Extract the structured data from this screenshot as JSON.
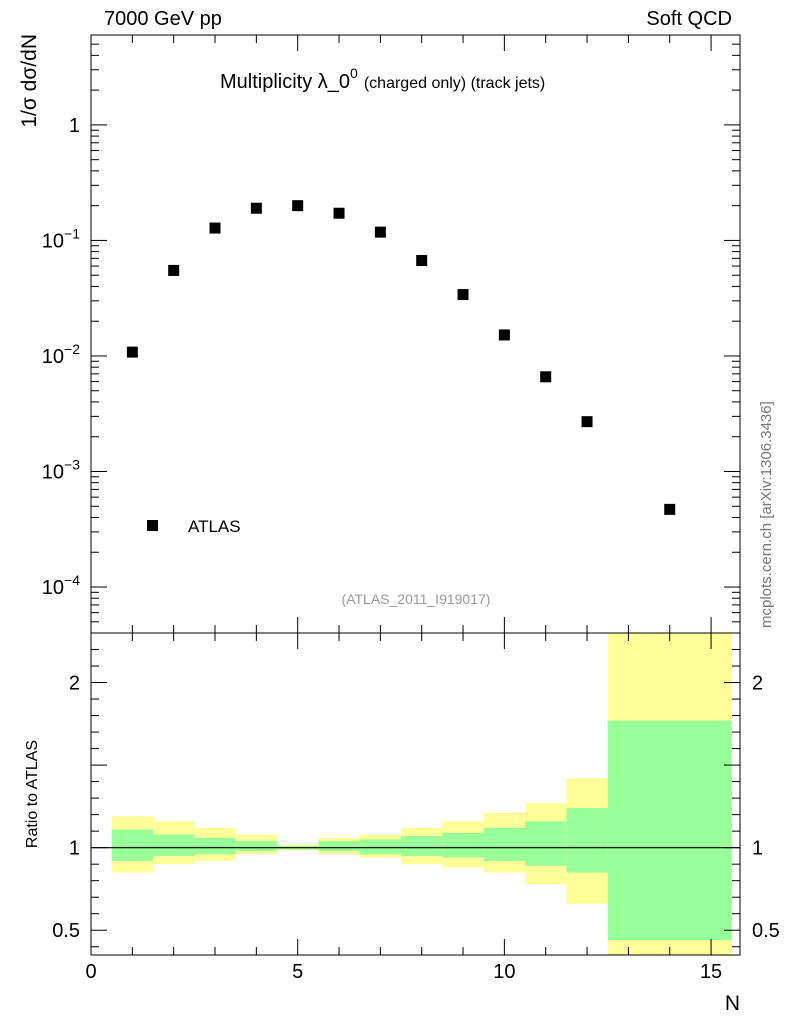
{
  "header": {
    "left": "7000 GeV pp",
    "right": "Soft QCD"
  },
  "side_note": "mcplots.cern.ch [arXiv:1306.3436]",
  "colors": {
    "band_outer": "#ffff99",
    "band_inner": "#99ff99",
    "marker": "#000000",
    "ref_note": "#999999"
  },
  "chart_data": [
    {
      "type": "scatter",
      "panel": "main",
      "title": "Multiplicity λ_0",
      "title_sup": "0",
      "title_suffix": "(charged only) (track jets)",
      "ylabel": "1/σ dσ/dN",
      "yscale": "log",
      "ylim": [
        4e-05,
        6
      ],
      "xlim": [
        0,
        15.7
      ],
      "y_ticks": [
        {
          "value": 1,
          "label": "1"
        },
        {
          "value": 0.1,
          "base": "10",
          "exp": "−1"
        },
        {
          "value": 0.01,
          "base": "10",
          "exp": "−2"
        },
        {
          "value": 0.001,
          "base": "10",
          "exp": "−3"
        },
        {
          "value": 0.0001,
          "base": "10",
          "exp": "−4"
        }
      ],
      "series": [
        {
          "name": "ATLAS",
          "x": [
            1,
            2,
            3,
            4,
            5,
            6,
            7,
            8,
            9,
            10,
            11,
            12,
            14
          ],
          "y": [
            0.0108,
            0.055,
            0.128,
            0.19,
            0.2,
            0.172,
            0.118,
            0.067,
            0.034,
            0.0152,
            0.0066,
            0.0027,
            0.00047
          ]
        }
      ],
      "legend": "lower-left",
      "reference_note": "(ATLAS_2011_I919017)"
    },
    {
      "type": "area",
      "panel": "ratio",
      "ylabel": "Ratio to ATLAS",
      "xlabel": "N",
      "ylim": [
        0.35,
        2.3
      ],
      "xlim": [
        0,
        15.7
      ],
      "x_ticks": [
        0,
        5,
        10,
        15
      ],
      "y_ticks": [
        0.5,
        1,
        2
      ],
      "bins": [
        {
          "lo": 0.5,
          "hi": 1.5,
          "outer": [
            0.85,
            1.19
          ],
          "inner": [
            0.92,
            1.11
          ]
        },
        {
          "lo": 1.5,
          "hi": 2.5,
          "outer": [
            0.9,
            1.16
          ],
          "inner": [
            0.95,
            1.08
          ]
        },
        {
          "lo": 2.5,
          "hi": 3.5,
          "outer": [
            0.92,
            1.12
          ],
          "inner": [
            0.96,
            1.06
          ]
        },
        {
          "lo": 3.5,
          "hi": 4.5,
          "outer": [
            0.96,
            1.08
          ],
          "inner": [
            0.98,
            1.04
          ]
        },
        {
          "lo": 4.5,
          "hi": 5.5,
          "outer": [
            0.985,
            1.02
          ],
          "inner": [
            0.99,
            1.01
          ]
        },
        {
          "lo": 5.5,
          "hi": 6.5,
          "outer": [
            0.96,
            1.06
          ],
          "inner": [
            0.98,
            1.04
          ]
        },
        {
          "lo": 6.5,
          "hi": 7.5,
          "outer": [
            0.94,
            1.08
          ],
          "inner": [
            0.96,
            1.05
          ]
        },
        {
          "lo": 7.5,
          "hi": 8.5,
          "outer": [
            0.9,
            1.12
          ],
          "inner": [
            0.95,
            1.07
          ]
        },
        {
          "lo": 8.5,
          "hi": 9.5,
          "outer": [
            0.88,
            1.16
          ],
          "inner": [
            0.94,
            1.09
          ]
        },
        {
          "lo": 9.5,
          "hi": 10.5,
          "outer": [
            0.85,
            1.21
          ],
          "inner": [
            0.92,
            1.12
          ]
        },
        {
          "lo": 10.5,
          "hi": 11.5,
          "outer": [
            0.78,
            1.27
          ],
          "inner": [
            0.89,
            1.16
          ]
        },
        {
          "lo": 11.5,
          "hi": 12.5,
          "outer": [
            0.66,
            1.42
          ],
          "inner": [
            0.85,
            1.24
          ]
        },
        {
          "lo": 12.5,
          "hi": 15.5,
          "outer": [
            0.35,
            2.3
          ],
          "inner": [
            0.44,
            1.77
          ]
        }
      ],
      "reference_line": 1
    }
  ]
}
